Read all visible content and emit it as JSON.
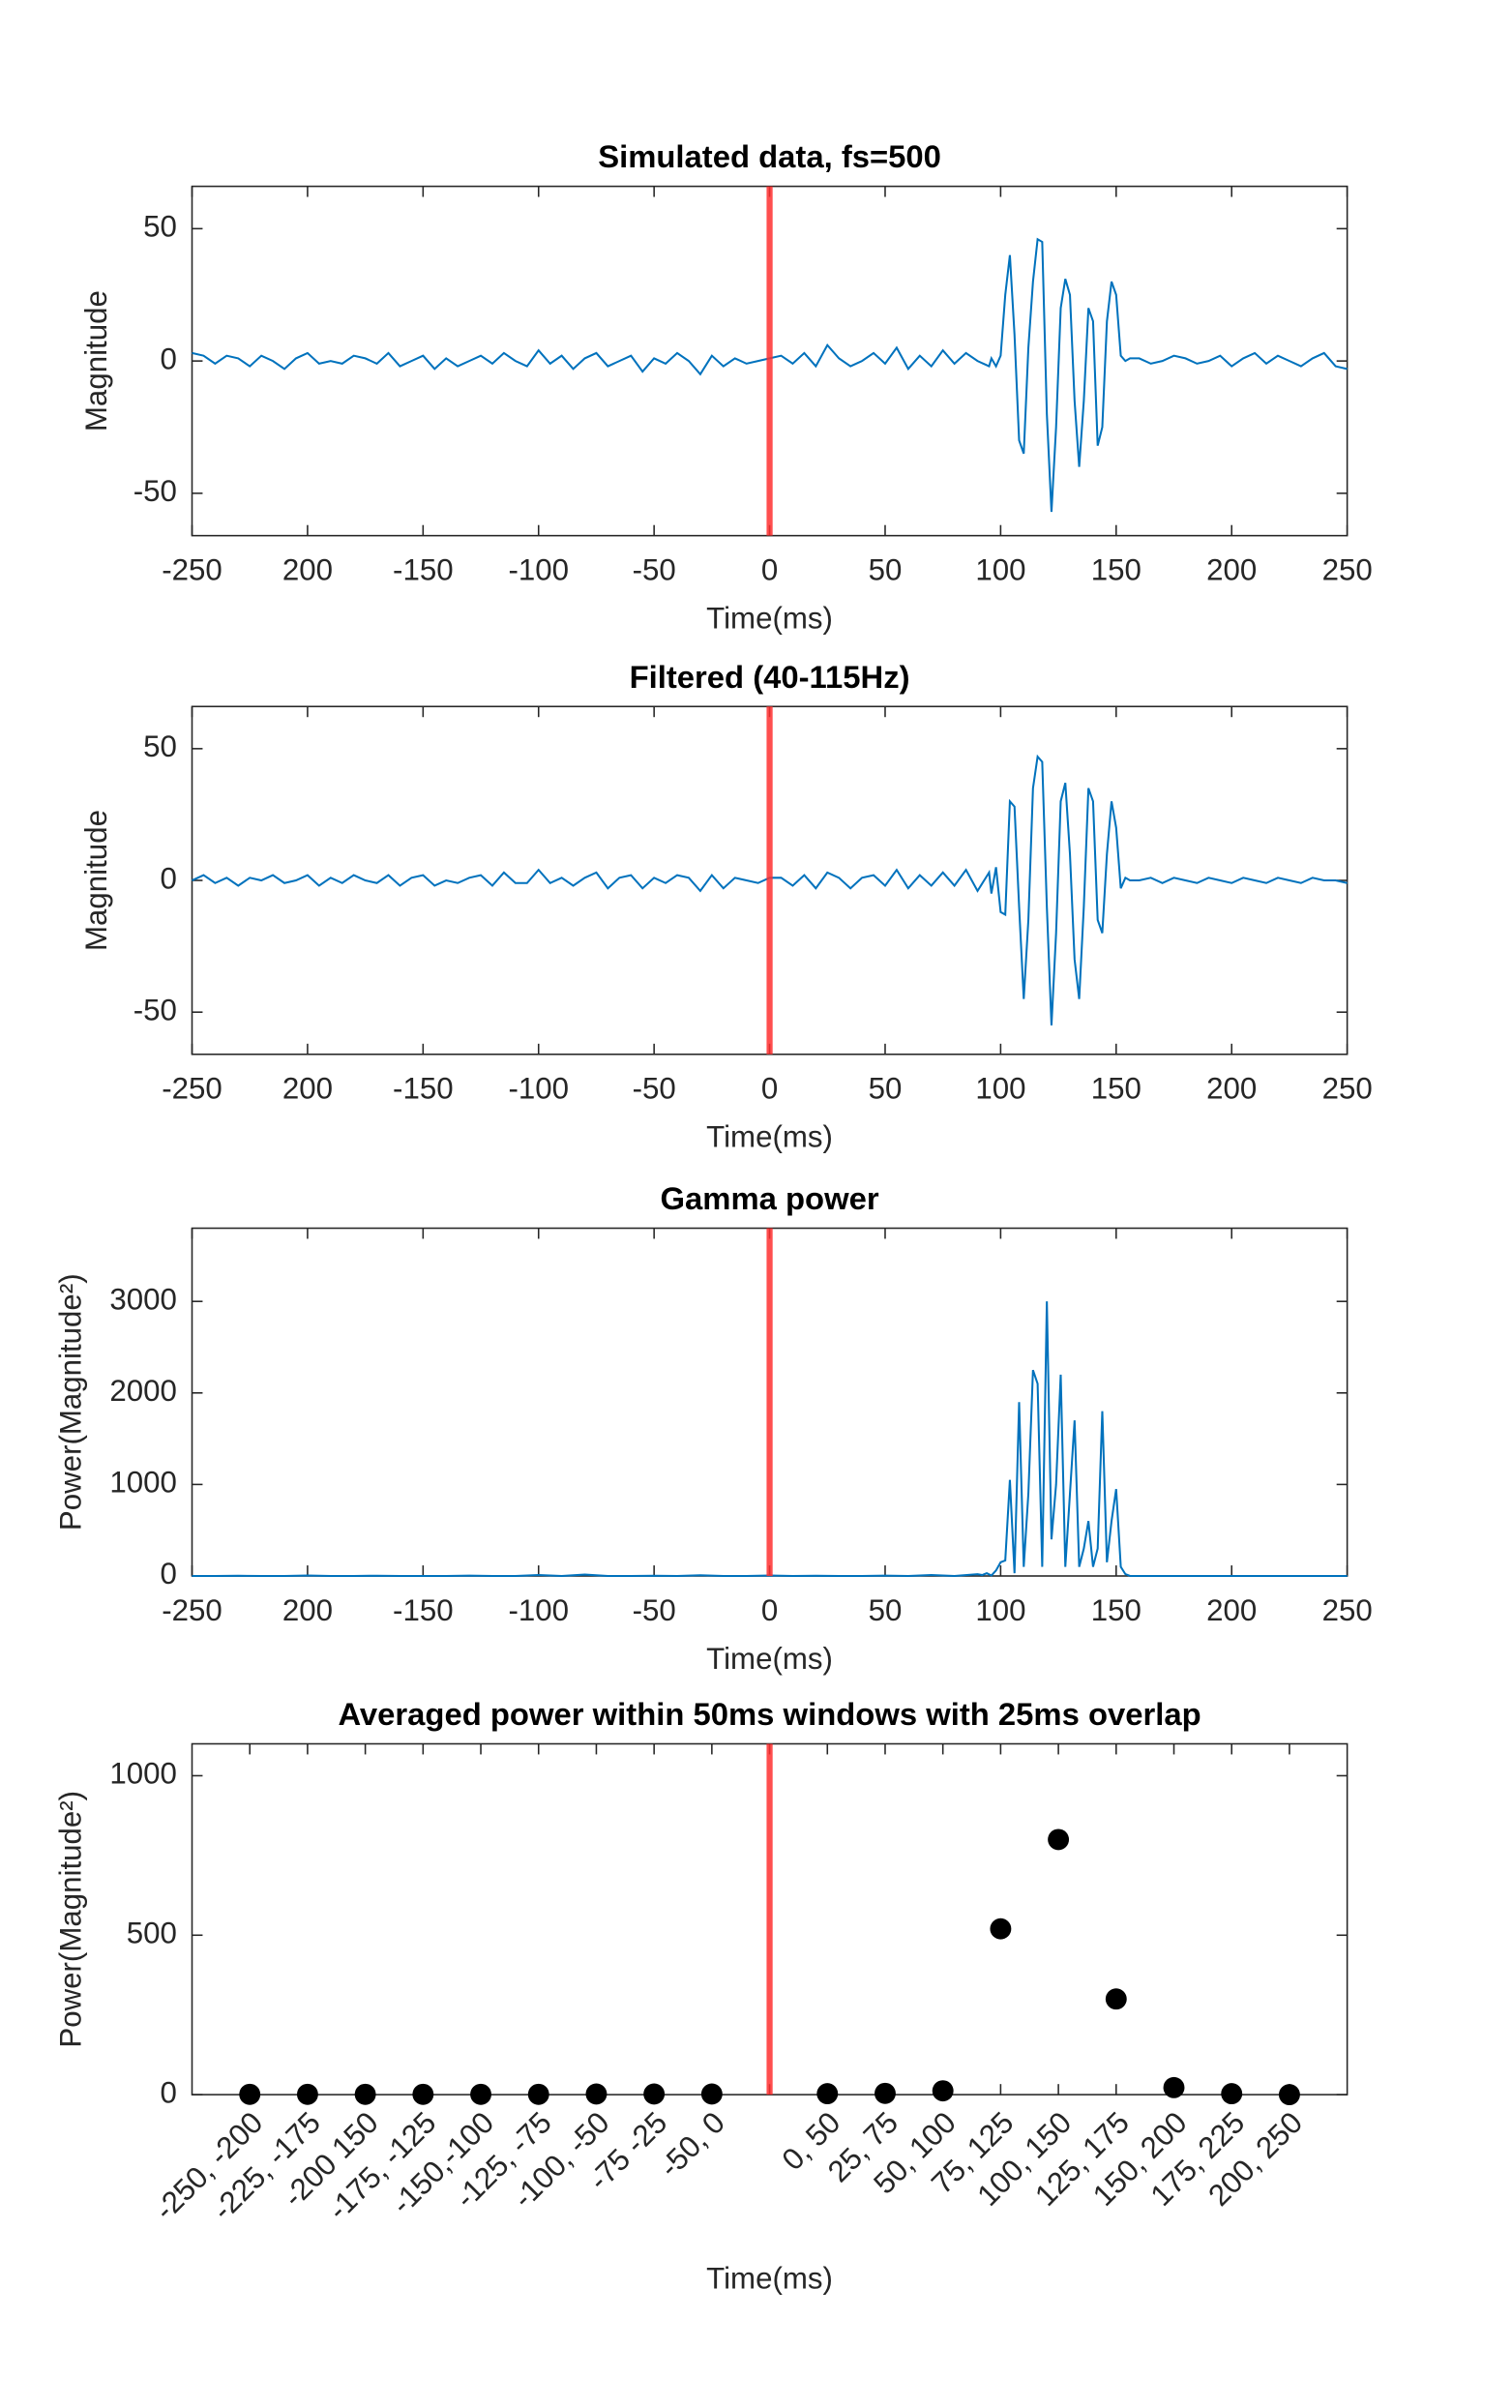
{
  "chart_data": [
    {
      "type": "line",
      "title": "Simulated data, fs=500",
      "xlabel": "Time(ms)",
      "ylabel": "Magnitude",
      "color": "#0072bd",
      "xlim": [
        -250,
        250
      ],
      "ylim": [
        -66,
        66
      ],
      "xticks": [
        -250,
        {
          "value": -200,
          "label": "200"
        },
        -150,
        -100,
        -50,
        0,
        50,
        100,
        150,
        200,
        250
      ],
      "yticks": [
        -50,
        0,
        50
      ],
      "vline": 0,
      "vline_color": "#ff3030",
      "x": [
        -250,
        -245,
        -240,
        -235,
        -230,
        -225,
        -220,
        -215,
        -210,
        -205,
        -200,
        -195,
        -190,
        -185,
        -180,
        -175,
        -170,
        -165,
        -160,
        -155,
        -150,
        -145,
        -140,
        -135,
        -130,
        -125,
        -120,
        -115,
        -110,
        -105,
        -100,
        -95,
        -90,
        -85,
        -80,
        -75,
        -70,
        -65,
        -60,
        -55,
        -50,
        -45,
        -40,
        -35,
        -30,
        -25,
        -20,
        -15,
        -10,
        -5,
        0,
        5,
        10,
        15,
        20,
        25,
        30,
        35,
        40,
        45,
        50,
        55,
        60,
        65,
        70,
        75,
        80,
        85,
        90,
        95,
        96,
        98,
        100,
        102,
        104,
        106,
        108,
        110,
        112,
        114,
        116,
        118,
        120,
        122,
        124,
        126,
        128,
        130,
        132,
        134,
        136,
        138,
        140,
        142,
        144,
        146,
        148,
        150,
        152,
        154,
        156,
        160,
        165,
        170,
        175,
        180,
        185,
        190,
        195,
        200,
        205,
        210,
        215,
        220,
        225,
        230,
        235,
        240,
        245,
        250
      ],
      "values": [
        3,
        2,
        -1,
        2,
        1,
        -2,
        2,
        0,
        -3,
        1,
        3,
        -1,
        0,
        -1,
        2,
        1,
        -1,
        3,
        -2,
        0,
        2,
        -3,
        1,
        -2,
        0,
        2,
        -1,
        3,
        0,
        -2,
        4,
        -1,
        2,
        -3,
        1,
        3,
        -2,
        0,
        2,
        -4,
        1,
        -1,
        3,
        0,
        -5,
        2,
        -2,
        1,
        -1,
        0,
        1,
        2,
        -1,
        3,
        -2,
        6,
        1,
        -2,
        0,
        3,
        -1,
        5,
        -3,
        2,
        -2,
        4,
        -1,
        3,
        0,
        -2,
        1,
        -2,
        2,
        25,
        40,
        10,
        -30,
        -35,
        5,
        30,
        46,
        45,
        -20,
        -57,
        -25,
        20,
        31,
        25,
        -15,
        -40,
        -15,
        20,
        15,
        -32,
        -25,
        15,
        30,
        25,
        2,
        0,
        1,
        1,
        -1,
        0,
        2,
        1,
        -1,
        0,
        2,
        -2,
        1,
        3,
        -1,
        2,
        0,
        -2,
        1,
        3,
        -2,
        -3
      ]
    },
    {
      "type": "line",
      "title": "Filtered (40-115Hz)",
      "xlabel": "Time(ms)",
      "ylabel": "Magnitude",
      "color": "#0072bd",
      "xlim": [
        -250,
        250
      ],
      "ylim": [
        -66,
        66
      ],
      "xticks": [
        -250,
        {
          "value": -200,
          "label": "200"
        },
        -150,
        -100,
        -50,
        0,
        50,
        100,
        150,
        200,
        250
      ],
      "yticks": [
        -50,
        0,
        50
      ],
      "vline": 0,
      "vline_color": "#ff3030",
      "x": [
        -250,
        -245,
        -240,
        -235,
        -230,
        -225,
        -220,
        -215,
        -210,
        -205,
        -200,
        -195,
        -190,
        -185,
        -180,
        -175,
        -170,
        -165,
        -160,
        -155,
        -150,
        -145,
        -140,
        -135,
        -130,
        -125,
        -120,
        -115,
        -110,
        -105,
        -100,
        -95,
        -90,
        -85,
        -80,
        -75,
        -70,
        -65,
        -60,
        -55,
        -50,
        -45,
        -40,
        -35,
        -30,
        -25,
        -20,
        -15,
        -10,
        -5,
        0,
        5,
        10,
        15,
        20,
        25,
        30,
        35,
        40,
        45,
        50,
        55,
        60,
        65,
        70,
        75,
        80,
        85,
        90,
        95,
        96,
        98,
        100,
        102,
        104,
        106,
        108,
        110,
        112,
        114,
        116,
        118,
        120,
        122,
        124,
        126,
        128,
        130,
        132,
        134,
        136,
        138,
        140,
        142,
        144,
        146,
        148,
        150,
        152,
        154,
        156,
        160,
        165,
        170,
        175,
        180,
        185,
        190,
        195,
        200,
        205,
        210,
        215,
        220,
        225,
        230,
        235,
        240,
        245,
        250
      ],
      "values": [
        0,
        2,
        -1,
        1,
        -2,
        1,
        0,
        2,
        -1,
        0,
        2,
        -2,
        1,
        -1,
        2,
        0,
        -1,
        2,
        -2,
        1,
        2,
        -2,
        0,
        -1,
        1,
        2,
        -2,
        3,
        -1,
        -1,
        4,
        -1,
        1,
        -2,
        1,
        3,
        -3,
        1,
        2,
        -3,
        1,
        -1,
        2,
        1,
        -4,
        2,
        -3,
        1,
        0,
        -1,
        1,
        1,
        -2,
        2,
        -3,
        3,
        1,
        -3,
        1,
        2,
        -2,
        4,
        -3,
        2,
        -2,
        3,
        -2,
        4,
        -4,
        3,
        -5,
        5,
        -12,
        -13,
        30,
        28,
        -10,
        -45,
        -15,
        35,
        47,
        45,
        -10,
        -55,
        -20,
        30,
        37,
        10,
        -30,
        -45,
        -10,
        35,
        30,
        -15,
        -20,
        10,
        30,
        20,
        -3,
        1,
        0,
        0,
        1,
        -1,
        1,
        0,
        -1,
        1,
        0,
        -1,
        1,
        0,
        -1,
        1,
        0,
        -1,
        1,
        0,
        0,
        -1
      ]
    },
    {
      "type": "line",
      "title": "Gamma power",
      "xlabel": "Time(ms)",
      "ylabel": "Power(Magnitude²)",
      "color": "#0072bd",
      "xlim": [
        -250,
        250
      ],
      "ylim": [
        0,
        3800
      ],
      "xticks": [
        -250,
        {
          "value": -200,
          "label": "200"
        },
        -150,
        -100,
        -50,
        0,
        50,
        100,
        150,
        200,
        250
      ],
      "yticks": [
        0,
        1000,
        2000,
        3000
      ],
      "vline": 0,
      "vline_color": "#ff3030",
      "x": [
        -250,
        -240,
        -230,
        -220,
        -210,
        -200,
        -190,
        -180,
        -170,
        -160,
        -150,
        -140,
        -130,
        -120,
        -110,
        -100,
        -90,
        -80,
        -70,
        -60,
        -50,
        -40,
        -30,
        -20,
        -10,
        0,
        10,
        20,
        30,
        40,
        50,
        60,
        70,
        80,
        90,
        92,
        94,
        96,
        98,
        100,
        102,
        104,
        106,
        108,
        110,
        112,
        114,
        116,
        118,
        120,
        122,
        124,
        126,
        128,
        130,
        132,
        134,
        136,
        138,
        140,
        142,
        144,
        146,
        148,
        150,
        152,
        154,
        156,
        160,
        170,
        180,
        190,
        200,
        210,
        220,
        230,
        240,
        250
      ],
      "values": [
        0,
        0,
        2,
        0,
        0,
        5,
        0,
        0,
        3,
        0,
        0,
        0,
        4,
        0,
        0,
        10,
        0,
        15,
        0,
        0,
        3,
        0,
        8,
        0,
        0,
        5,
        0,
        2,
        0,
        0,
        4,
        0,
        10,
        0,
        20,
        10,
        30,
        5,
        60,
        150,
        170,
        1050,
        30,
        1900,
        100,
        900,
        2250,
        2100,
        100,
        3000,
        400,
        1000,
        2200,
        100,
        900,
        1700,
        100,
        300,
        600,
        100,
        300,
        1800,
        150,
        600,
        950,
        100,
        20,
        0,
        0,
        0,
        0,
        0,
        0,
        0,
        0,
        0,
        0,
        0
      ]
    },
    {
      "type": "scatter",
      "title": "Averaged power within 50ms windows with 25ms overlap",
      "xlabel": "Time(ms)",
      "ylabel": "Power(Magnitude²)",
      "color": "#000000",
      "ylim": [
        0,
        1100
      ],
      "yticks": [
        0,
        500,
        1000
      ],
      "vline_color": "#ff3030",
      "categories": [
        "-250, -200",
        "-225, -175",
        "-200 150",
        "-175, -125",
        "-150,-100",
        "-125, -75",
        "-100, -50",
        "-75 -25",
        "-50, 0",
        null,
        "0, 50",
        "25, 75",
        "50, 100",
        "75, 125",
        "100, 150",
        "125, 175",
        "150, 200",
        "175, 225",
        "200, 250"
      ],
      "values": [
        1,
        1,
        1,
        1,
        1,
        1,
        2,
        2,
        2,
        null,
        3,
        4,
        12,
        520,
        800,
        300,
        22,
        3,
        0
      ]
    }
  ]
}
